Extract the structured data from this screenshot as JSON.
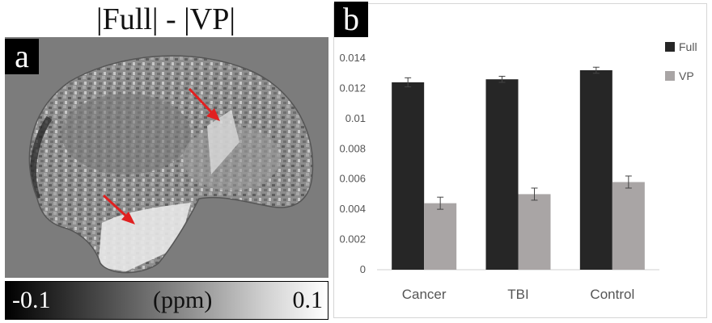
{
  "panel_a": {
    "label": "a",
    "title": "|Full| - |VP|",
    "colorbar": {
      "min_label": "-0.1",
      "unit_label": "(ppm)",
      "max_label": "0.1"
    },
    "arrow_color": "#e02020"
  },
  "panel_b": {
    "label": "b"
  },
  "chart_data": {
    "type": "bar",
    "title": "",
    "xlabel": "",
    "ylabel": "",
    "categories": [
      "Cancer",
      "TBI",
      "Control"
    ],
    "series": [
      {
        "name": "Full",
        "color": "#262626",
        "values": [
          0.0124,
          0.0126,
          0.0132
        ],
        "errors": [
          0.0003,
          0.0002,
          0.0002
        ]
      },
      {
        "name": "VP",
        "color": "#a9a5a5",
        "values": [
          0.0044,
          0.005,
          0.0058
        ],
        "errors": [
          0.0004,
          0.0004,
          0.0004
        ]
      }
    ],
    "ylim": [
      0,
      0.014
    ],
    "yticks": [
      0,
      0.002,
      0.004,
      0.006,
      0.008,
      0.01,
      0.012,
      0.014
    ],
    "ytick_labels": [
      "0",
      "0.002",
      "0.004",
      "0.006",
      "0.008",
      "0.01",
      "0.012",
      "0.014"
    ],
    "grid": false,
    "legend_position": "top-right"
  }
}
